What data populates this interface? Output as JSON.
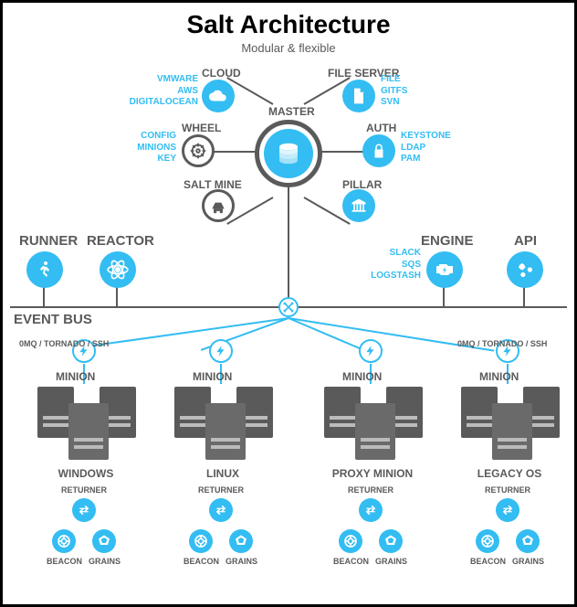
{
  "title": "Salt Architecture",
  "subtitle": "Modular & flexible",
  "colors": {
    "accent": "#33bdf2",
    "gray": "#5a5a5a",
    "bg": "#ffffff"
  },
  "master": {
    "label": "MASTER"
  },
  "top_nodes": [
    {
      "key": "cloud",
      "label": "CLOUD",
      "sub": "VMWARE\nAWS\nDIGITALOCEAN",
      "side": "left"
    },
    {
      "key": "fileserver",
      "label": "FILE SERVER",
      "sub": "FILE\nGITFS\nSVN",
      "side": "right"
    },
    {
      "key": "wheel",
      "label": "WHEEL",
      "sub": "CONFIG\nMINIONS\nKEY",
      "side": "left"
    },
    {
      "key": "auth",
      "label": "AUTH",
      "sub": "KEYSTONE\nLDAP\nPAM",
      "side": "right"
    },
    {
      "key": "saltmine",
      "label": "SALT MINE",
      "sub": "",
      "side": "left"
    },
    {
      "key": "pillar",
      "label": "PILLAR",
      "sub": "",
      "side": "right"
    }
  ],
  "mid_nodes": [
    {
      "key": "runner",
      "label": "RUNNER"
    },
    {
      "key": "reactor",
      "label": "REACTOR"
    },
    {
      "key": "engine",
      "label": "ENGINE",
      "sub": "SLACK\nSQS\nLOGSTASH"
    },
    {
      "key": "api",
      "label": "API"
    }
  ],
  "eventbus": "EVENT BUS",
  "transport": "0MQ / TORNADO / SSH",
  "minions": [
    {
      "label": "MINION",
      "os": "WINDOWS"
    },
    {
      "label": "MINION",
      "os": "LINUX"
    },
    {
      "label": "MINION",
      "os": "PROXY MINION"
    },
    {
      "label": "MINION",
      "os": "LEGACY OS"
    }
  ],
  "minion_sub": {
    "returner": "RETURNER",
    "beacon": "BEACON",
    "grains": "GRAINS"
  }
}
